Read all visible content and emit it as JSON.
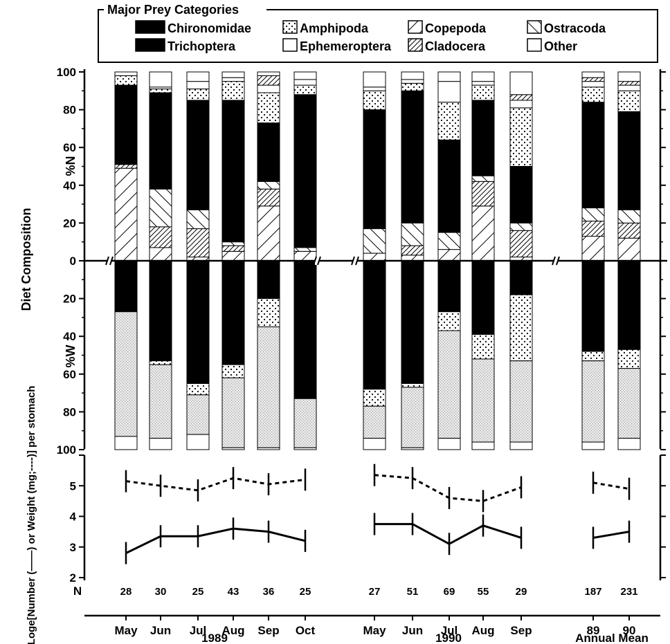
{
  "chart_data": {
    "type": "bar",
    "legend": {
      "title": "Major Prey Categories",
      "entries": [
        {
          "key": "chironomidae",
          "label": "Chironomidae"
        },
        {
          "key": "amphipoda",
          "label": "Amphipoda"
        },
        {
          "key": "copepoda",
          "label": "Copepoda"
        },
        {
          "key": "ostracoda",
          "label": "Ostracoda"
        },
        {
          "key": "trichoptera",
          "label": "Trichoptera"
        },
        {
          "key": "ephemeroptera",
          "label": "Ephemeroptera"
        },
        {
          "key": "cladocera",
          "label": "Cladocera"
        },
        {
          "key": "other",
          "label": "Other"
        }
      ],
      "placement": "top"
    },
    "ylabel": "Diet Composition",
    "ylabel_top": "%N",
    "ylabel_bottom": "%W",
    "ylabel_lower": "Loge[Number (——) or Weight (mg;----)] per stomach",
    "n_label": "N",
    "y_ticks_top": [
      "100",
      "80",
      "60",
      "40",
      "20",
      "0"
    ],
    "y_ticks_bottom": [
      "20",
      "40",
      "60",
      "80",
      "100"
    ],
    "y_ticks_lower": [
      "5",
      "4",
      "3",
      "2"
    ],
    "ylim_lower": [
      2,
      6
    ],
    "groups": [
      {
        "label": "1989",
        "members": [
          "May",
          "Jun",
          "Jul",
          "Aug",
          "Sep",
          "Oct"
        ]
      },
      {
        "label": "1990",
        "members": [
          "May",
          "Jun",
          "Jul",
          "Aug",
          "Sep"
        ]
      },
      {
        "label": "Annual Mean",
        "members": [
          "89",
          "90"
        ]
      }
    ],
    "categories": [
      "May",
      "Jun",
      "Jul",
      "Aug",
      "Sep",
      "Oct",
      "May",
      "Jun",
      "Jul",
      "Aug",
      "Sep",
      "89",
      "90"
    ],
    "n": [
      "28",
      "30",
      "25",
      "43",
      "36",
      "25",
      "27",
      "51",
      "69",
      "55",
      "29",
      "187",
      "231"
    ],
    "percent_number": [
      {
        "copepoda": 49,
        "chironomidae": 42,
        "amphipoda": 5,
        "cladocera": 2,
        "other": 2
      },
      {
        "cladocera": 11,
        "copepoda": 7,
        "ostracoda": 20,
        "chironomidae": 51,
        "amphipoda": 2,
        "ephemeroptera": 1,
        "other": 8
      },
      {
        "cladocera": 15,
        "copepoda": 2,
        "ostracoda": 10,
        "chironomidae": 58,
        "amphipoda": 6,
        "ephemeroptera": 4,
        "other": 5
      },
      {
        "copepoda": 5,
        "ostracoda": 2,
        "chironomidae": 75,
        "amphipoda": 10,
        "ephemeroptera": 2,
        "cladocera": 3,
        "other": 3
      },
      {
        "copepoda": 29,
        "cladocera": 9,
        "ostracoda": 4,
        "chironomidae": 31,
        "amphipoda": 16,
        "ephemeroptera": 4,
        "cladocera_2": 5,
        "other": 2
      },
      {
        "copepoda": 5,
        "ostracoda": 2,
        "chironomidae": 81,
        "amphipoda": 5,
        "ephemeroptera": 3,
        "other": 4
      },
      {
        "copepoda": 4,
        "ostracoda": 13,
        "chironomidae": 63,
        "amphipoda": 10,
        "ephemeroptera": 2,
        "other": 8
      },
      {
        "copepoda": 3,
        "cladocera": 5,
        "ostracoda": 12,
        "chironomidae": 70,
        "amphipoda": 4,
        "ephemeroptera": 2,
        "other": 4
      },
      {
        "copepoda": 6,
        "ostracoda": 9,
        "chironomidae": 49,
        "amphipoda": 20,
        "ephemeroptera": 11,
        "other": 5
      },
      {
        "copepoda": 29,
        "cladocera": 13,
        "ostracoda": 3,
        "chironomidae": 40,
        "amphipoda": 8,
        "ephemeroptera": 2,
        "other": 5
      },
      {
        "copepoda": 2,
        "cladocera": 14,
        "ostracoda": 4,
        "chironomidae": 30,
        "amphipoda": 31,
        "ephemeroptera": 4,
        "cladocera_2": 3,
        "other": 12
      },
      {
        "copepoda": 13,
        "cladocera": 8,
        "ostracoda": 7,
        "chironomidae": 56,
        "amphipoda": 8,
        "ephemeroptera": 3,
        "cladocera_2": 2,
        "other": 3
      },
      {
        "copepoda": 12,
        "cladocera": 8,
        "ostracoda": 7,
        "chironomidae": 52,
        "amphipoda": 11,
        "ephemeroptera": 3,
        "cladocera_2": 2,
        "other": 5
      }
    ],
    "percent_weight": [
      {
        "chironomidae": 27,
        "trichoptera": 66,
        "other": 7
      },
      {
        "chironomidae": 53,
        "amphipoda": 2,
        "trichoptera": 39,
        "other": 6
      },
      {
        "chironomidae": 65,
        "amphipoda": 6,
        "trichoptera": 21,
        "other": 8
      },
      {
        "chironomidae": 55,
        "amphipoda": 7,
        "trichoptera": 37,
        "other": 1
      },
      {
        "chironomidae": 20,
        "amphipoda": 15,
        "trichoptera": 64,
        "other": 1
      },
      {
        "chironomidae": 73,
        "trichoptera": 26,
        "other": 1
      },
      {
        "chironomidae": 68,
        "amphipoda": 9,
        "trichoptera": 17,
        "other": 6
      },
      {
        "chironomidae": 65,
        "amphipoda": 2,
        "trichoptera": 32,
        "other": 1
      },
      {
        "chironomidae": 27,
        "amphipoda": 10,
        "trichoptera": 57,
        "other": 6
      },
      {
        "chironomidae": 39,
        "amphipoda": 13,
        "trichoptera": 44,
        "other": 4
      },
      {
        "chironomidae": 18,
        "amphipoda": 35,
        "trichoptera": 43,
        "other": 4
      },
      {
        "chironomidae": 48,
        "amphipoda": 5,
        "trichoptera": 43,
        "other": 4
      },
      {
        "chironomidae": 47,
        "amphipoda": 10,
        "trichoptera": 37,
        "other": 6
      }
    ],
    "series": [
      {
        "key": "number",
        "style": "solid",
        "values": [
          2.8,
          3.35,
          3.35,
          3.6,
          3.5,
          3.2,
          3.75,
          3.75,
          3.1,
          3.7,
          3.3,
          3.3,
          3.5
        ]
      },
      {
        "key": "weight",
        "style": "dashed",
        "values": [
          5.15,
          5.0,
          4.85,
          5.25,
          5.05,
          5.2,
          5.35,
          5.25,
          4.6,
          4.5,
          4.95,
          5.1,
          4.9
        ]
      }
    ]
  }
}
